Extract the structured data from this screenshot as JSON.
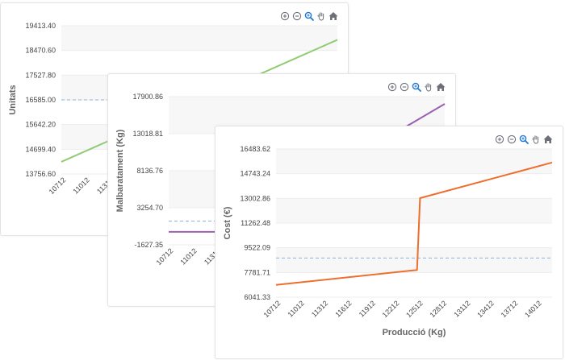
{
  "toolbar": {
    "icons": [
      "zoom-in-icon",
      "zoom-out-icon",
      "zoom-select-icon",
      "pan-hand-icon",
      "home-reset-icon"
    ],
    "colors": {
      "normal": "#6e7079",
      "active": "#1f77d4"
    }
  },
  "chart_data": [
    {
      "type": "line",
      "title": "",
      "xlabel": "",
      "ylabel": "Unitats",
      "categories": [
        "10712",
        "11012",
        "11312"
      ],
      "y_ticks": [
        "19413.40",
        "18470.60",
        "17527.80",
        "16585.00",
        "15642.20",
        "14699.40",
        "13756.60"
      ],
      "ylim": [
        13756.6,
        19413.4
      ],
      "xlim": [
        10612,
        16612
      ],
      "grid": true,
      "reference_line": 16585.0,
      "series": [
        {
          "color": "#91cc75",
          "points": [
            [
              10612,
              14220
            ],
            [
              16612,
              18880
            ]
          ]
        }
      ]
    },
    {
      "type": "line",
      "title": "",
      "xlabel": "",
      "ylabel": "Malbaratament (Kg)",
      "categories": [
        "10712",
        "11012",
        "11312"
      ],
      "y_ticks": [
        "17900.86",
        "13018.81",
        "8136.76",
        "3254.70",
        "-1627.35"
      ],
      "ylim": [
        -1627.35,
        17900.86
      ],
      "xlim": [
        10612,
        14312
      ],
      "grid": true,
      "reference_line": 1500,
      "series": [
        {
          "color": "#9a60b4",
          "points": [
            [
              10612,
              80
            ],
            [
              11390,
              80
            ],
            [
              14312,
              16950
            ]
          ]
        }
      ]
    },
    {
      "type": "line",
      "title": "",
      "xlabel": "Producció (Kg)",
      "ylabel": "Cost (€)",
      "categories": [
        "10712",
        "11012",
        "11312",
        "11612",
        "11912",
        "12212",
        "12512",
        "12812",
        "13112",
        "13412",
        "13712",
        "14012"
      ],
      "y_ticks": [
        "16483.62",
        "14743.24",
        "13002.86",
        "11262.48",
        "9522.09",
        "7781.71",
        "6041.33"
      ],
      "ylim": [
        6041.33,
        16483.62
      ],
      "xlim": [
        10612,
        14312
      ],
      "grid": true,
      "reference_line": 8800,
      "series": [
        {
          "color": "#ee6e2d",
          "points": [
            [
              10612,
              6910
            ],
            [
              12502,
              7960
            ],
            [
              12542,
              13020
            ],
            [
              14312,
              15530
            ]
          ]
        }
      ]
    }
  ]
}
